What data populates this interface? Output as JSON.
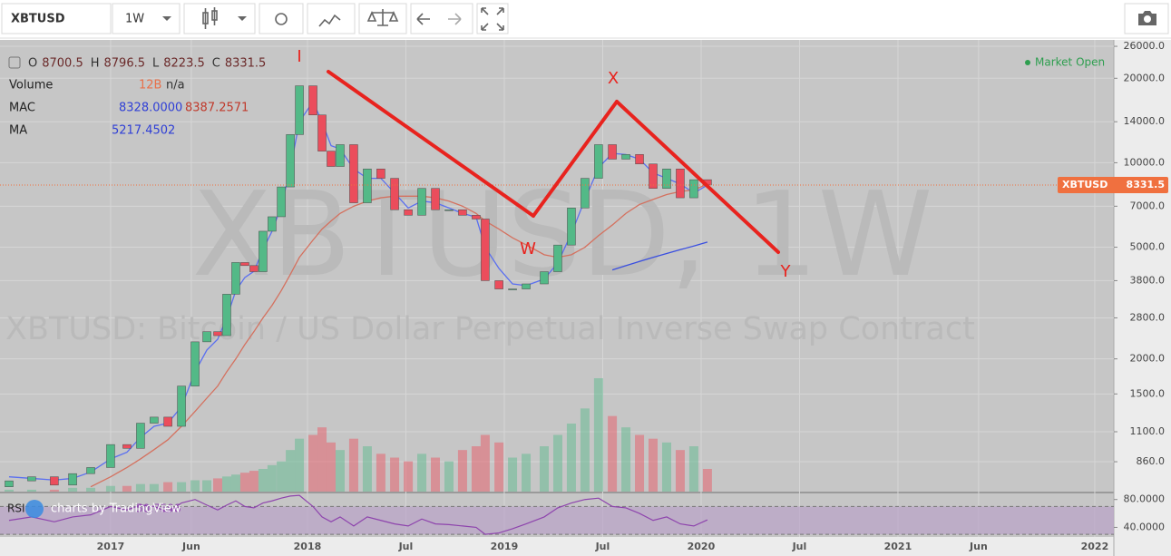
{
  "toolbar": {
    "symbol": "XBTUSD",
    "interval": "1W"
  },
  "chart_data": {
    "type": "candlestick",
    "watermark": "XBTUSD, 1W",
    "description": "XBTUSD: Bitcoin / US Dollar Perpetual Inverse Swap Contract",
    "status": "Market Open",
    "branding": "charts by TradingView",
    "legend": {
      "ohlc": [
        {
          "label": "O",
          "value": 8700.5
        },
        {
          "label": "H",
          "value": 8796.5
        },
        {
          "label": "L",
          "value": 8223.5
        },
        {
          "label": "C",
          "value": 8331.5
        }
      ],
      "indicators": [
        {
          "name": "Volume",
          "values": [
            "12B",
            "n/a"
          ]
        },
        {
          "name": "MAC",
          "values": [
            "8328.0000",
            "8387.2571"
          ]
        },
        {
          "name": "MA",
          "values": [
            "5217.4502"
          ]
        }
      ]
    },
    "up_color": "#53b987",
    "down_color": "#eb4d5c",
    "x": [
      2016.484,
      2016.599,
      2016.714,
      2016.807,
      2016.899,
      2017.0,
      2017.083,
      2017.152,
      2017.221,
      2017.291,
      2017.36,
      2017.429,
      2017.489,
      2017.544,
      2017.59,
      2017.636,
      2017.682,
      2017.728,
      2017.774,
      2017.82,
      2017.867,
      2017.913,
      2017.959,
      2018.028,
      2018.074,
      2018.12,
      2018.166,
      2018.235,
      2018.304,
      2018.373,
      2018.443,
      2018.512,
      2018.581,
      2018.65,
      2018.719,
      2018.788,
      2018.857,
      2018.903,
      2018.973,
      2019.042,
      2019.111,
      2019.203,
      2019.272,
      2019.341,
      2019.41,
      2019.479,
      2019.549,
      2019.618,
      2019.687,
      2019.756,
      2019.825,
      2019.894,
      2019.963,
      2020.032
    ],
    "open": [
      700,
      735,
      760,
      710,
      780,
      820,
      990,
      960,
      1180,
      1240,
      1150,
      1600,
      2300,
      2500,
      2420,
      3400,
      4410,
      4300,
      4090,
      5700,
      6420,
      8200,
      12600,
      18800,
      14800,
      11000,
      9700,
      11600,
      7200,
      9500,
      8800,
      6800,
      6500,
      8100,
      6800,
      6800,
      6500,
      6300,
      3800,
      3550,
      3550,
      3700,
      4090,
      5090,
      6900,
      8800,
      11600,
      10300,
      10700,
      9900,
      8100,
      9500,
      7500,
      8700.5
    ],
    "close": [
      735,
      760,
      710,
      780,
      820,
      990,
      960,
      1180,
      1240,
      1150,
      1600,
      2300,
      2500,
      2420,
      3400,
      4410,
      4300,
      4090,
      5700,
      6420,
      8200,
      12600,
      18800,
      14800,
      11000,
      9700,
      11600,
      7200,
      9500,
      8800,
      6800,
      6500,
      8100,
      6800,
      6800,
      6500,
      6300,
      3800,
      3550,
      3550,
      3700,
      4090,
      5090,
      6900,
      8800,
      11600,
      10300,
      10700,
      9900,
      8100,
      9500,
      7500,
      8700.5,
      8331.5
    ],
    "volume": [
      1,
      1,
      1,
      2,
      2,
      3,
      3,
      4,
      4,
      5,
      5,
      6,
      6,
      7,
      8,
      9,
      10,
      11,
      12,
      14,
      16,
      22,
      28,
      30,
      34,
      26,
      22,
      28,
      24,
      20,
      18,
      16,
      20,
      18,
      16,
      22,
      24,
      30,
      26,
      18,
      20,
      24,
      30,
      36,
      44,
      60,
      40,
      34,
      30,
      28,
      26,
      22,
      24,
      12
    ],
    "lines": [
      {
        "color": "#5a6ff0",
        "values": [
          760,
          750,
          740,
          750,
          790,
          880,
          930,
          1050,
          1150,
          1180,
          1350,
          1800,
          2150,
          2350,
          2800,
          3500,
          3900,
          4100,
          4900,
          5700,
          7000,
          9500,
          14000,
          16500,
          14000,
          11500,
          11200,
          9500,
          8800,
          8800,
          7800,
          6900,
          7300,
          7200,
          6900,
          6600,
          6400,
          5000,
          4200,
          3700,
          3650,
          3850,
          4400,
          5600,
          7400,
          9600,
          10800,
          10700,
          10300,
          9200,
          8800,
          8400,
          7800,
          8328
        ]
      },
      {
        "color": "#d4715f",
        "values": [
          null,
          null,
          null,
          null,
          700,
          760,
          820,
          880,
          950,
          1030,
          1150,
          1300,
          1450,
          1600,
          1800,
          2000,
          2250,
          2500,
          2800,
          3100,
          3500,
          4000,
          4600,
          5300,
          5800,
          6200,
          6600,
          7000,
          7300,
          7500,
          7600,
          7600,
          7600,
          7500,
          7300,
          7000,
          6600,
          6200,
          5800,
          5400,
          5100,
          4700,
          4600,
          4700,
          5000,
          5500,
          6000,
          6600,
          7100,
          7400,
          7700,
          7900,
          8000,
          8387.2571
        ]
      },
      {
        "color": "#3a4fe0",
        "values": [
          null,
          null,
          null,
          null,
          null,
          null,
          null,
          null,
          null,
          null,
          null,
          null,
          null,
          null,
          null,
          null,
          null,
          null,
          null,
          null,
          null,
          null,
          null,
          null,
          null,
          null,
          null,
          null,
          null,
          null,
          null,
          null,
          null,
          null,
          null,
          null,
          null,
          null,
          null,
          null,
          null,
          null,
          null,
          null,
          null,
          null,
          4150,
          4300,
          4450,
          4600,
          4750,
          4900,
          5050,
          5217.4502
        ]
      }
    ],
    "xlim": [
      2016.438,
      2022.097
    ],
    "xticks": [
      2017,
      {
        "value": 2017.41,
        "label": "Jun"
      },
      2018,
      {
        "value": 2018.5,
        "label": "Jul"
      },
      2019,
      {
        "value": 2019.5,
        "label": "Jul"
      },
      2020,
      {
        "value": 2020.5,
        "label": "Jul"
      },
      2021,
      {
        "value": 2021.41,
        "label": "Jun"
      },
      2022
    ],
    "ylim": [
      673,
      27400
    ],
    "log_scale": true,
    "grid": true,
    "yticks": [
      {
        "value": 26000,
        "label": "26000.0"
      },
      {
        "value": 20000,
        "label": "20000.0"
      },
      {
        "value": 14000,
        "label": "14000.0"
      },
      {
        "value": 10000,
        "label": "10000.0"
      },
      {
        "value": 7000,
        "label": "7000.0"
      },
      {
        "value": 5000,
        "label": "5000.0"
      },
      {
        "value": 3800,
        "label": "3800.0"
      },
      {
        "value": 2800,
        "label": "2800.0"
      },
      {
        "value": 2000,
        "label": "2000.0"
      },
      {
        "value": 1500,
        "label": "1500.0"
      },
      {
        "value": 1100,
        "label": "1100.0"
      },
      {
        "value": 860,
        "label": "860.0"
      }
    ],
    "last_price": {
      "symbol": "XBTUSD",
      "value": 8331.5,
      "color": "#f0703f"
    },
    "annotations": [
      "I",
      "W",
      "X",
      "Y"
    ],
    "rsi": {
      "label": "RSI",
      "value": "50.7598",
      "color": "#8e44ad",
      "ylim": [
        26.25,
        88.75
      ],
      "band": [
        30,
        70
      ],
      "yticks": [
        {
          "value": 80,
          "label": "80.0000"
        },
        {
          "value": 40,
          "label": "40.0000"
        }
      ],
      "values": [
        50,
        55,
        48,
        55,
        58,
        70,
        65,
        72,
        70,
        62,
        75,
        80,
        72,
        65,
        72,
        78,
        70,
        68,
        75,
        78,
        82,
        85,
        86,
        70,
        55,
        48,
        55,
        42,
        55,
        50,
        45,
        42,
        52,
        45,
        44,
        42,
        40,
        30,
        32,
        38,
        45,
        55,
        68,
        75,
        80,
        82,
        70,
        68,
        60,
        50,
        55,
        45,
        42,
        50.7598
      ]
    }
  }
}
